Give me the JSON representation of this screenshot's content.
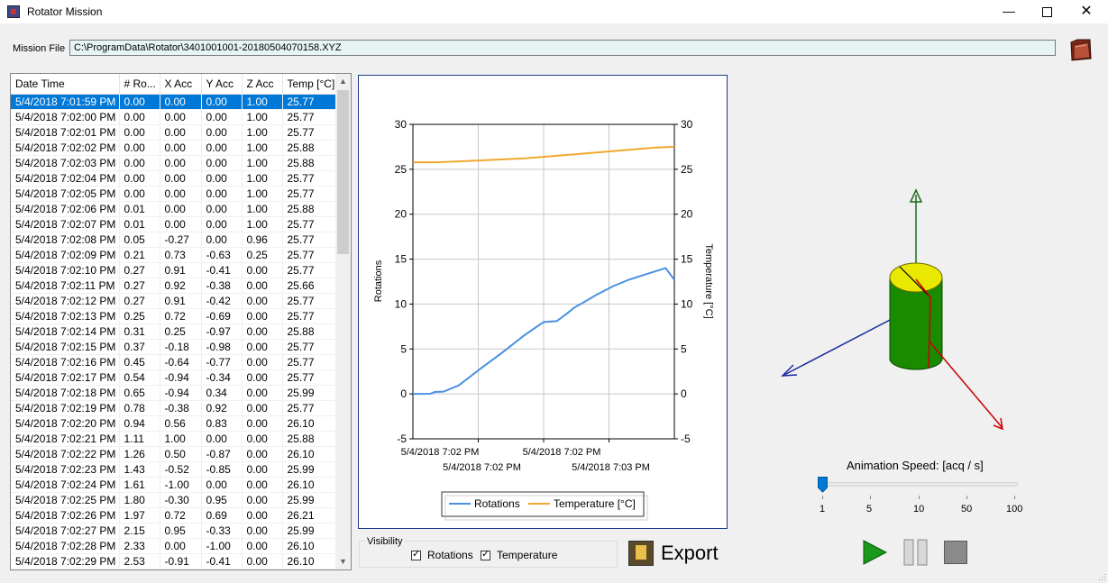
{
  "window": {
    "title": "Rotator Mission",
    "minimize_icon": "minimize-icon",
    "maximize_icon": "maximize-icon",
    "close_icon": "close-icon"
  },
  "mission": {
    "label": "Mission File",
    "path": "C:\\ProgramData\\Rotator\\3401001001-20180504070158.XYZ",
    "open_icon": "folder-icon"
  },
  "grid": {
    "columns": [
      "Date Time",
      "# Ro...",
      "X Acc",
      "Y Acc",
      "Z Acc",
      "Temp [°C]"
    ],
    "selected_row": 0,
    "rows": [
      [
        "5/4/2018 7:01:59 PM",
        "0.00",
        "0.00",
        "0.00",
        "1.00",
        "25.77"
      ],
      [
        "5/4/2018 7:02:00 PM",
        "0.00",
        "0.00",
        "0.00",
        "1.00",
        "25.77"
      ],
      [
        "5/4/2018 7:02:01 PM",
        "0.00",
        "0.00",
        "0.00",
        "1.00",
        "25.77"
      ],
      [
        "5/4/2018 7:02:02 PM",
        "0.00",
        "0.00",
        "0.00",
        "1.00",
        "25.88"
      ],
      [
        "5/4/2018 7:02:03 PM",
        "0.00",
        "0.00",
        "0.00",
        "1.00",
        "25.88"
      ],
      [
        "5/4/2018 7:02:04 PM",
        "0.00",
        "0.00",
        "0.00",
        "1.00",
        "25.77"
      ],
      [
        "5/4/2018 7:02:05 PM",
        "0.00",
        "0.00",
        "0.00",
        "1.00",
        "25.77"
      ],
      [
        "5/4/2018 7:02:06 PM",
        "0.01",
        "0.00",
        "0.00",
        "1.00",
        "25.88"
      ],
      [
        "5/4/2018 7:02:07 PM",
        "0.01",
        "0.00",
        "0.00",
        "1.00",
        "25.77"
      ],
      [
        "5/4/2018 7:02:08 PM",
        "0.05",
        "-0.27",
        "0.00",
        "0.96",
        "25.77"
      ],
      [
        "5/4/2018 7:02:09 PM",
        "0.21",
        "0.73",
        "-0.63",
        "0.25",
        "25.77"
      ],
      [
        "5/4/2018 7:02:10 PM",
        "0.27",
        "0.91",
        "-0.41",
        "0.00",
        "25.77"
      ],
      [
        "5/4/2018 7:02:11 PM",
        "0.27",
        "0.92",
        "-0.38",
        "0.00",
        "25.66"
      ],
      [
        "5/4/2018 7:02:12 PM",
        "0.27",
        "0.91",
        "-0.42",
        "0.00",
        "25.77"
      ],
      [
        "5/4/2018 7:02:13 PM",
        "0.25",
        "0.72",
        "-0.69",
        "0.00",
        "25.77"
      ],
      [
        "5/4/2018 7:02:14 PM",
        "0.31",
        "0.25",
        "-0.97",
        "0.00",
        "25.88"
      ],
      [
        "5/4/2018 7:02:15 PM",
        "0.37",
        "-0.18",
        "-0.98",
        "0.00",
        "25.77"
      ],
      [
        "5/4/2018 7:02:16 PM",
        "0.45",
        "-0.64",
        "-0.77",
        "0.00",
        "25.77"
      ],
      [
        "5/4/2018 7:02:17 PM",
        "0.54",
        "-0.94",
        "-0.34",
        "0.00",
        "25.77"
      ],
      [
        "5/4/2018 7:02:18 PM",
        "0.65",
        "-0.94",
        "0.34",
        "0.00",
        "25.99"
      ],
      [
        "5/4/2018 7:02:19 PM",
        "0.78",
        "-0.38",
        "0.92",
        "0.00",
        "25.77"
      ],
      [
        "5/4/2018 7:02:20 PM",
        "0.94",
        "0.56",
        "0.83",
        "0.00",
        "26.10"
      ],
      [
        "5/4/2018 7:02:21 PM",
        "1.11",
        "1.00",
        "0.00",
        "0.00",
        "25.88"
      ],
      [
        "5/4/2018 7:02:22 PM",
        "1.26",
        "0.50",
        "-0.87",
        "0.00",
        "26.10"
      ],
      [
        "5/4/2018 7:02:23 PM",
        "1.43",
        "-0.52",
        "-0.85",
        "0.00",
        "25.99"
      ],
      [
        "5/4/2018 7:02:24 PM",
        "1.61",
        "-1.00",
        "0.00",
        "0.00",
        "26.10"
      ],
      [
        "5/4/2018 7:02:25 PM",
        "1.80",
        "-0.30",
        "0.95",
        "0.00",
        "25.99"
      ],
      [
        "5/4/2018 7:02:26 PM",
        "1.97",
        "0.72",
        "0.69",
        "0.00",
        "26.21"
      ],
      [
        "5/4/2018 7:02:27 PM",
        "2.15",
        "0.95",
        "-0.33",
        "0.00",
        "25.99"
      ],
      [
        "5/4/2018 7:02:28 PM",
        "2.33",
        "0.00",
        "-1.00",
        "0.00",
        "26.10"
      ],
      [
        "5/4/2018 7:02:29 PM",
        "2.53",
        "-0.91",
        "-0.41",
        "0.00",
        "26.10"
      ]
    ]
  },
  "chart_data": {
    "type": "line",
    "title": "",
    "ylabel": "Rotations",
    "y2label": "Temperature [°C]",
    "ylim": [
      -5,
      30
    ],
    "y2lim": [
      -5,
      30
    ],
    "yticks": [
      "30",
      "25",
      "20",
      "15",
      "10",
      "5",
      "0",
      "-5"
    ],
    "y2ticks": [
      "30",
      "25",
      "20",
      "15",
      "10",
      "5",
      "0",
      "-5"
    ],
    "xticks_upper": [
      "5/4/2018 7:02 PM",
      "5/4/2018 7:02 PM"
    ],
    "xticks_lower": [
      "5/4/2018 7:02 PM",
      "5/4/2018 7:03 PM"
    ],
    "xlim": [
      "19:01:59",
      "19:03:59"
    ],
    "grid": true,
    "legend_position": "bottom",
    "series": [
      {
        "name": "Rotations",
        "color": "#4a90e2",
        "x": [
          "19:01:59",
          "19:02:07",
          "19:02:09",
          "19:02:13",
          "19:02:20",
          "19:02:30",
          "19:02:40",
          "19:02:50",
          "19:02:59",
          "19:03:05",
          "19:03:10",
          "19:03:13",
          "19:03:16",
          "19:03:23",
          "19:03:31",
          "19:03:38",
          "19:03:47",
          "19:03:55",
          "19:03:59"
        ],
        "values": [
          0,
          0.01,
          0.21,
          0.25,
          0.94,
          2.8,
          4.6,
          6.5,
          8.0,
          8.1,
          9.0,
          9.6,
          10.0,
          11.0,
          12.0,
          12.7,
          13.4,
          14.0,
          12.7
        ]
      },
      {
        "name": "Temperature [°C]",
        "color": "#f0a830",
        "x": [
          "19:01:59",
          "19:02:10",
          "19:02:20",
          "19:02:30",
          "19:02:40",
          "19:02:50",
          "19:03:00",
          "19:03:10",
          "19:03:20",
          "19:03:30",
          "19:03:40",
          "19:03:50",
          "19:03:59"
        ],
        "values": [
          25.77,
          25.77,
          25.88,
          25.99,
          26.1,
          26.21,
          26.4,
          26.6,
          26.8,
          27.0,
          27.2,
          27.4,
          27.5
        ]
      }
    ]
  },
  "visibility": {
    "legend": "Visibility",
    "rotations_label": "Rotations",
    "temperature_label": "Temperature",
    "rotations_checked": true,
    "temperature_checked": true
  },
  "export": {
    "label": "Export",
    "icon": "export-icon"
  },
  "animation": {
    "speed_label": "Animation Speed: [acq / s]",
    "ticks": [
      "1",
      "5",
      "10",
      "50",
      "100"
    ],
    "value": 1,
    "play_icon": "play-icon",
    "pause_icon": "pause-icon",
    "stop_icon": "stop-icon"
  },
  "colors": {
    "selection": "#0078d7",
    "chart_border": "#1a3a8a",
    "cylinder_body": "#1a8a00",
    "cylinder_top": "#e8e800",
    "axis_x": "#cc0000",
    "axis_y": "#1a6a1a",
    "axis_z": "#1a2aa0"
  }
}
